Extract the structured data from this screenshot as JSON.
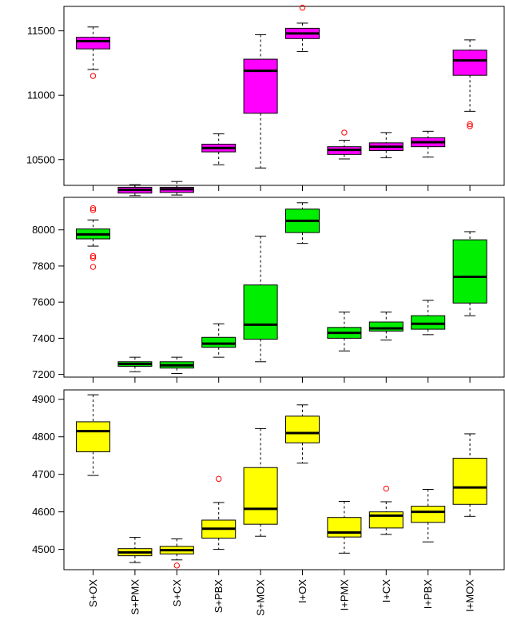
{
  "chart_data": [
    {
      "type": "box",
      "panel": "top",
      "fill": "#ff00ff",
      "categories": [
        "S+OX",
        "S+PMX",
        "S+CX",
        "S+PBX",
        "S+MOX",
        "I+OX",
        "I+PMX",
        "I+CX",
        "I+PBX",
        "I+MOX"
      ],
      "ylim": [
        10300,
        11690
      ],
      "yticks": [
        10500,
        11000,
        11500
      ],
      "boxes": [
        {
          "q1": 11360,
          "median": 11420,
          "q3": 11450,
          "wlo": 11200,
          "whi": 11530,
          "outliers": [
            11150
          ]
        },
        {
          "q1": 10240,
          "median": 10265,
          "q3": 10285,
          "wlo": 10220,
          "whi": 10305,
          "outliers": []
        },
        {
          "q1": 10245,
          "median": 10270,
          "q3": 10285,
          "wlo": 10225,
          "whi": 10330,
          "outliers": []
        },
        {
          "q1": 10560,
          "median": 10590,
          "q3": 10620,
          "wlo": 10460,
          "whi": 10700,
          "outliers": []
        },
        {
          "q1": 10860,
          "median": 11190,
          "q3": 11280,
          "wlo": 10435,
          "whi": 11470,
          "outliers": []
        },
        {
          "q1": 11440,
          "median": 11480,
          "q3": 11520,
          "wlo": 11340,
          "whi": 11560,
          "outliers": [
            11680
          ]
        },
        {
          "q1": 10540,
          "median": 10575,
          "q3": 10600,
          "wlo": 10505,
          "whi": 10650,
          "outliers": [
            10710
          ]
        },
        {
          "q1": 10570,
          "median": 10600,
          "q3": 10630,
          "wlo": 10515,
          "whi": 10710,
          "outliers": []
        },
        {
          "q1": 10600,
          "median": 10635,
          "q3": 10670,
          "wlo": 10520,
          "whi": 10720,
          "outliers": []
        },
        {
          "q1": 11155,
          "median": 11270,
          "q3": 11350,
          "wlo": 10875,
          "whi": 11430,
          "outliers": [
            10760,
            10775
          ]
        }
      ]
    },
    {
      "type": "box",
      "panel": "middle",
      "fill": "#00ee00",
      "categories": [
        "S+OX",
        "S+PMX",
        "S+CX",
        "S+PBX",
        "S+MOX",
        "I+OX",
        "I+PMX",
        "I+CX",
        "I+PBX",
        "I+MOX"
      ],
      "ylim": [
        7185,
        8180
      ],
      "yticks": [
        7200,
        7400,
        7600,
        7800,
        8000
      ],
      "boxes": [
        {
          "q1": 7950,
          "median": 7975,
          "q3": 8005,
          "wlo": 7910,
          "whi": 8055,
          "outliers": [
            8120,
            8110,
            7855,
            7845,
            7795
          ]
        },
        {
          "q1": 7245,
          "median": 7258,
          "q3": 7270,
          "wlo": 7215,
          "whi": 7295,
          "outliers": []
        },
        {
          "q1": 7235,
          "median": 7250,
          "q3": 7270,
          "wlo": 7205,
          "whi": 7295,
          "outliers": []
        },
        {
          "q1": 7350,
          "median": 7370,
          "q3": 7405,
          "wlo": 7295,
          "whi": 7480,
          "outliers": []
        },
        {
          "q1": 7395,
          "median": 7475,
          "q3": 7695,
          "wlo": 7270,
          "whi": 7965,
          "outliers": []
        },
        {
          "q1": 7985,
          "median": 8050,
          "q3": 8115,
          "wlo": 7925,
          "whi": 8150,
          "outliers": []
        },
        {
          "q1": 7400,
          "median": 7430,
          "q3": 7460,
          "wlo": 7330,
          "whi": 7545,
          "outliers": []
        },
        {
          "q1": 7440,
          "median": 7455,
          "q3": 7490,
          "wlo": 7390,
          "whi": 7545,
          "outliers": []
        },
        {
          "q1": 7450,
          "median": 7480,
          "q3": 7525,
          "wlo": 7420,
          "whi": 7610,
          "outliers": []
        },
        {
          "q1": 7595,
          "median": 7740,
          "q3": 7945,
          "wlo": 7525,
          "whi": 7990,
          "outliers": []
        }
      ]
    },
    {
      "type": "box",
      "panel": "bottom",
      "fill": "#ffff00",
      "categories": [
        "S+OX",
        "S+PMX",
        "S+CX",
        "S+PBX",
        "S+MOX",
        "I+OX",
        "I+PMX",
        "I+CX",
        "I+PBX",
        "I+MOX"
      ],
      "ylim": [
        4446,
        4925
      ],
      "yticks": [
        4500,
        4600,
        4700,
        4800,
        4900
      ],
      "boxes": [
        {
          "q1": 4760,
          "median": 4815,
          "q3": 4840,
          "wlo": 4697,
          "whi": 4912,
          "outliers": []
        },
        {
          "q1": 4483,
          "median": 4492,
          "q3": 4502,
          "wlo": 4465,
          "whi": 4532,
          "outliers": []
        },
        {
          "q1": 4488,
          "median": 4498,
          "q3": 4508,
          "wlo": 4472,
          "whi": 4528,
          "outliers": [
            4457
          ]
        },
        {
          "q1": 4530,
          "median": 4555,
          "q3": 4578,
          "wlo": 4500,
          "whi": 4625,
          "outliers": [
            4688
          ]
        },
        {
          "q1": 4567,
          "median": 4608,
          "q3": 4718,
          "wlo": 4535,
          "whi": 4822,
          "outliers": []
        },
        {
          "q1": 4784,
          "median": 4810,
          "q3": 4855,
          "wlo": 4730,
          "whi": 4885,
          "outliers": []
        },
        {
          "q1": 4533,
          "median": 4545,
          "q3": 4585,
          "wlo": 4490,
          "whi": 4628,
          "outliers": []
        },
        {
          "q1": 4557,
          "median": 4590,
          "q3": 4600,
          "wlo": 4540,
          "whi": 4627,
          "outliers": [
            4662
          ]
        },
        {
          "q1": 4572,
          "median": 4600,
          "q3": 4615,
          "wlo": 4520,
          "whi": 4660,
          "outliers": []
        },
        {
          "q1": 4620,
          "median": 4665,
          "q3": 4743,
          "wlo": 4588,
          "whi": 4808,
          "outliers": []
        }
      ]
    }
  ]
}
